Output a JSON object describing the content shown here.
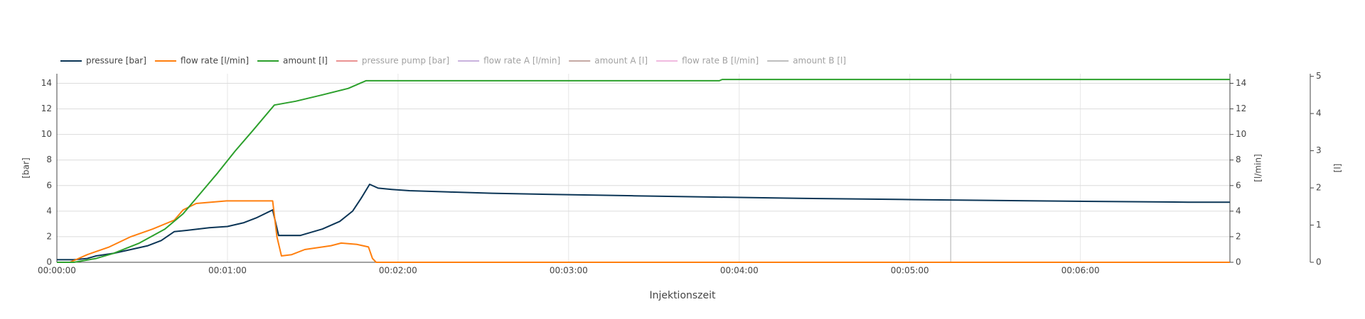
{
  "chart_data": {
    "type": "line",
    "x_title": "Injektionszeit",
    "y_title": "[bar]",
    "y2_title": "[l/min]",
    "y3_title": "[l]",
    "xlim": [
      0,
      412.6
    ],
    "xticks": [
      {
        "value": 0,
        "label": "00:00:00"
      },
      {
        "value": 60,
        "label": "00:01:00"
      },
      {
        "value": 120,
        "label": "00:02:00"
      },
      {
        "value": 180,
        "label": "00:03:00"
      },
      {
        "value": 240,
        "label": "00:04:00"
      },
      {
        "value": 300,
        "label": "00:05:00"
      },
      {
        "value": 360,
        "label": "00:06:00"
      }
    ],
    "ylim": [
      0,
      14.75
    ],
    "yticks": [
      0,
      2,
      4,
      6,
      8,
      10,
      12,
      14
    ],
    "y2lim": [
      0,
      14.75
    ],
    "y2ticks": [
      0,
      2,
      4,
      6,
      8,
      10,
      12,
      14
    ],
    "y3lim": [
      0,
      5.07
    ],
    "y3ticks": [
      0,
      1,
      2,
      3,
      4,
      5
    ],
    "grid": true,
    "vertical_line": 314.4,
    "legend": "top-left",
    "series": [
      {
        "name": "pressure [bar]",
        "color": "#0b3556",
        "axis": "y",
        "x": [
          0,
          6,
          10.7,
          13.8,
          19.9,
          26,
          32,
          36.7,
          41.3,
          45.9,
          53.6,
          60,
          65.8,
          70.4,
          75.9,
          78,
          85.7,
          93.4,
          99.5,
          104,
          107,
          110,
          113,
          117.8,
          124,
          137.8,
          153,
          176,
          203,
          231,
          261,
          301.5,
          345,
          398,
          412.6
        ],
        "values": [
          0.2,
          0.2,
          0.3,
          0.5,
          0.7,
          1.0,
          1.3,
          1.7,
          2.4,
          2.5,
          2.7,
          2.8,
          3.1,
          3.5,
          4.1,
          2.1,
          2.1,
          2.6,
          3.2,
          4.0,
          5.0,
          6.1,
          5.8,
          5.7,
          5.6,
          5.5,
          5.4,
          5.3,
          5.2,
          5.1,
          5.0,
          4.9,
          4.8,
          4.7,
          4.7
        ]
      },
      {
        "name": "flow rate [l/min]",
        "color": "#ff7f0e",
        "axis": "y2",
        "x": [
          0,
          4.6,
          10.7,
          18.4,
          26,
          33.7,
          41.3,
          44.4,
          49,
          59.7,
          75.9,
          77.4,
          79,
          82.6,
          87.2,
          96.4,
          100,
          105.6,
          109.6,
          111,
          112.3,
          412.6
        ],
        "values": [
          0,
          0,
          0.6,
          1.2,
          2.0,
          2.6,
          3.3,
          4.1,
          4.6,
          4.8,
          4.8,
          2.0,
          0.5,
          0.6,
          1.0,
          1.3,
          1.5,
          1.4,
          1.2,
          0.3,
          0,
          0
        ]
      },
      {
        "name": "amount [l]",
        "color": "#2ca02c",
        "axis": "y",
        "x": [
          0,
          6,
          13.8,
          19.9,
          29,
          38,
          44.4,
          50.5,
          56.6,
          62.7,
          68.9,
          76.5,
          84,
          93.4,
          102.5,
          108.7,
          233,
          234,
          412.6
        ],
        "values": [
          0,
          0,
          0.3,
          0.7,
          1.5,
          2.6,
          3.8,
          5.4,
          7.0,
          8.7,
          10.3,
          12.3,
          12.6,
          13.1,
          13.6,
          14.2,
          14.2,
          14.3,
          14.3
        ]
      },
      {
        "name": "pressure pump [bar]",
        "color": "#d62728",
        "visible": false
      },
      {
        "name": "flow rate A [l/min]",
        "color": "#9467bd",
        "visible": false
      },
      {
        "name": "amount A [l]",
        "color": "#8c564b",
        "visible": false
      },
      {
        "name": "flow rate B [l/min]",
        "color": "#e377c2",
        "visible": false
      },
      {
        "name": "amount B [l]",
        "color": "#7f7f7f",
        "visible": false
      }
    ]
  }
}
